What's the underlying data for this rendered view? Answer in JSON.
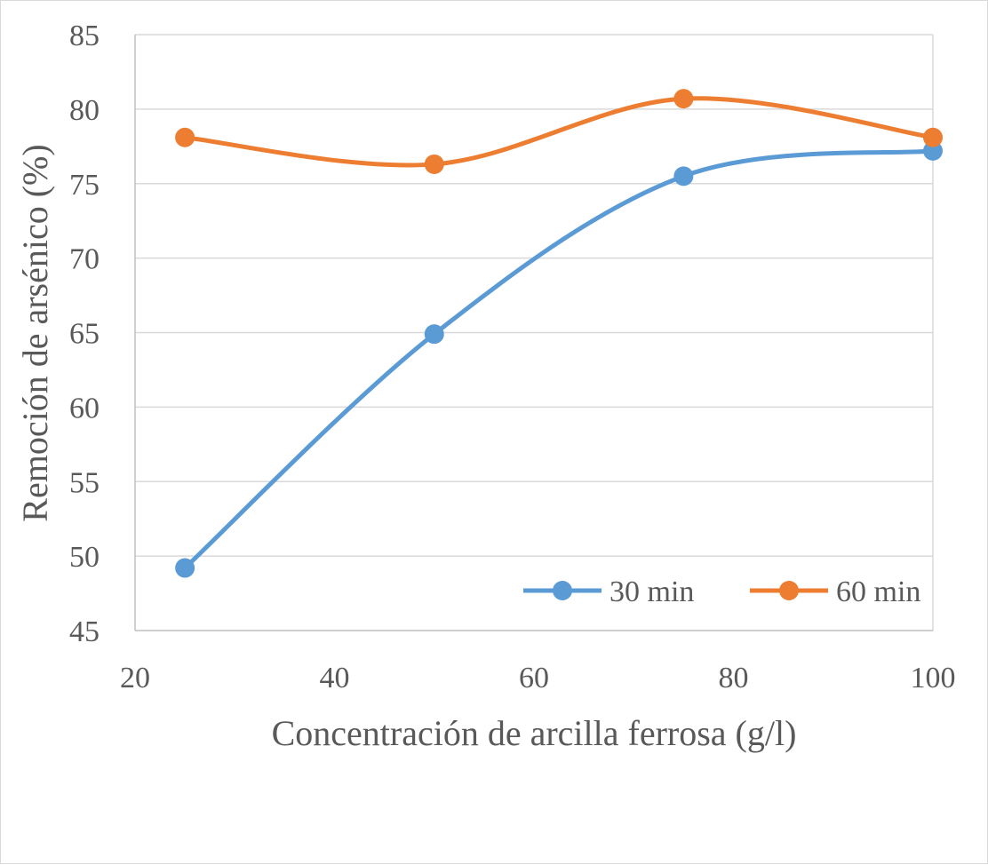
{
  "chart_data": {
    "type": "line",
    "title": "",
    "xlabel": "Concentración de arcilla ferrosa (g/l)",
    "ylabel": "Remoción de arsénico (%)",
    "xlim": [
      20,
      100
    ],
    "ylim": [
      45,
      85
    ],
    "xticks": [
      20,
      40,
      60,
      80,
      100
    ],
    "yticks": [
      45,
      50,
      55,
      60,
      65,
      70,
      75,
      80,
      85
    ],
    "grid": "horizontal",
    "smooth": true,
    "legend_position": "bottom-right",
    "series": [
      {
        "name": "30 min",
        "color": "#5b9bd5",
        "x": [
          25,
          50,
          75,
          100
        ],
        "y": [
          49.2,
          64.9,
          75.5,
          77.2
        ]
      },
      {
        "name": "60 min",
        "color": "#ed7d31",
        "x": [
          25,
          50,
          75,
          100
        ],
        "y": [
          78.1,
          76.3,
          80.7,
          78.1
        ]
      }
    ]
  }
}
